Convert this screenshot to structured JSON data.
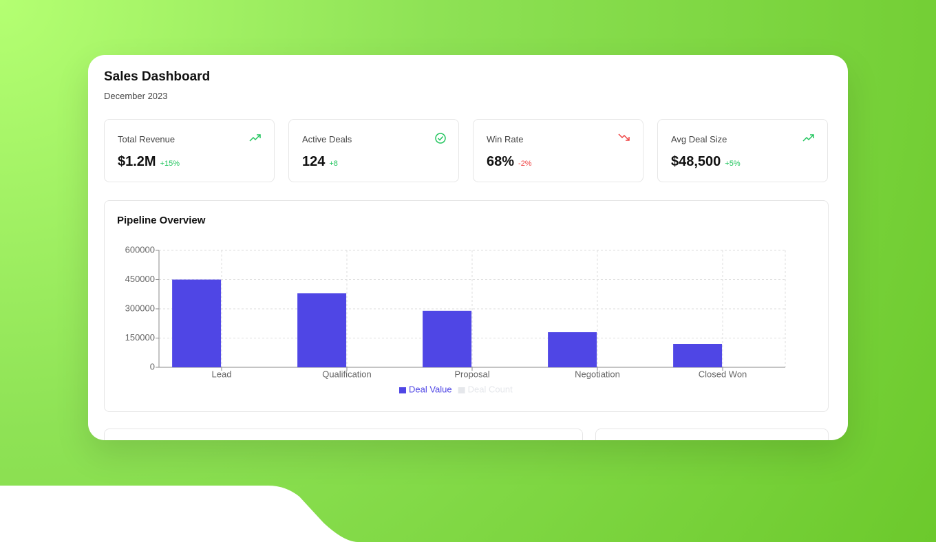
{
  "header": {
    "title": "Sales Dashboard",
    "subtitle": "December 2023"
  },
  "kpis": [
    {
      "label": "Total Revenue",
      "value": "$1.2M",
      "change": "+15%"
    },
    {
      "label": "Active Deals",
      "value": "124",
      "change": "+8"
    },
    {
      "label": "Win Rate",
      "value": "68%",
      "change": "-2%"
    },
    {
      "label": "Avg Deal Size",
      "value": "$48,500",
      "change": "+5%"
    }
  ],
  "chart_data": {
    "type": "bar",
    "title": "Pipeline Overview",
    "categories": [
      "Lead",
      "Qualification",
      "Proposal",
      "Negotiation",
      "Closed Won"
    ],
    "series": [
      {
        "name": "Deal Value",
        "color": "#4f46e5",
        "values": [
          450000,
          380000,
          290000,
          180000,
          120000
        ]
      },
      {
        "name": "Deal Count",
        "color": "#e5e7eb",
        "values": [
          null,
          null,
          null,
          null,
          null
        ],
        "hidden": true
      }
    ],
    "ylim": [
      0,
      600000
    ],
    "yticks": [
      0,
      150000,
      300000,
      450000,
      600000
    ],
    "grid": true,
    "legend": "bottom"
  }
}
